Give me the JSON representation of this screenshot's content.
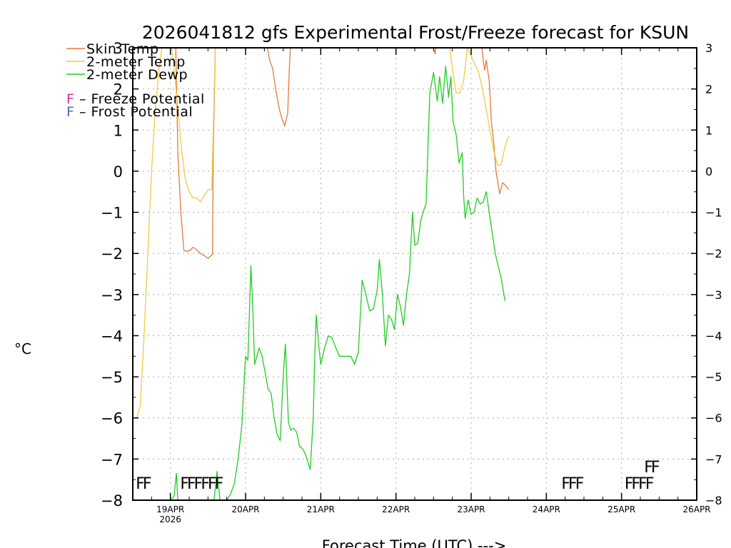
{
  "chart_data": {
    "type": "line",
    "title": "2026041812 gfs Experimental Frost/Freeze forecast for KSUN",
    "xlabel": "Forecast Time (UTC) --->",
    "ylabel": "°C",
    "ylim": [
      -8,
      3
    ],
    "xlim": [
      18.5,
      26.0
    ],
    "grid": true,
    "x_unit": "days of April 2026 (UTC)",
    "y_ticks": [
      "-8",
      "-7",
      "-6",
      "-5",
      "-4",
      "-3",
      "-2",
      "-1",
      "0",
      "1",
      "2",
      "3"
    ],
    "x_ticks": [
      {
        "label": "19APR",
        "x": 19,
        "sub": "2026"
      },
      {
        "label": "20APR",
        "x": 20
      },
      {
        "label": "21APR",
        "x": 21
      },
      {
        "label": "22APR",
        "x": 22
      },
      {
        "label": "23APR",
        "x": 23
      },
      {
        "label": "24APR",
        "x": 24
      },
      {
        "label": "25APR",
        "x": 25
      },
      {
        "label": "26APR",
        "x": 26
      }
    ],
    "legend": {
      "placement": "top-left",
      "series_entries": [
        "Skin Temp",
        "2-meter Temp",
        "2-meter Dewp"
      ],
      "symbol_entries": [
        {
          "symbol": "F",
          "text": " – Freeze Potential",
          "color": "#cc3399"
        },
        {
          "symbol": "F",
          "text": " – Frost Potential",
          "color": "#5566cc"
        }
      ]
    },
    "series": [
      {
        "name": "Skin Temp",
        "color": "#e07b39",
        "segments": [
          [
            [
              19.07,
              3.2
            ],
            [
              19.1,
              0.4
            ],
            [
              19.14,
              -1.0
            ],
            [
              19.18,
              -1.93
            ],
            [
              19.22,
              -1.95
            ],
            [
              19.26,
              -1.93
            ],
            [
              19.3,
              -1.85
            ],
            [
              19.34,
              -1.9
            ],
            [
              19.4,
              -2.0
            ],
            [
              19.45,
              -2.05
            ],
            [
              19.5,
              -2.12
            ],
            [
              19.56,
              -2.02
            ],
            [
              19.57,
              0.5
            ],
            [
              19.6,
              3.2
            ]
          ],
          [
            [
              20.27,
              3.2
            ],
            [
              20.32,
              2.7
            ],
            [
              20.36,
              2.5
            ],
            [
              20.4,
              2.0
            ],
            [
              20.45,
              1.5
            ],
            [
              20.48,
              1.3
            ],
            [
              20.52,
              1.1
            ],
            [
              20.56,
              1.4
            ],
            [
              20.58,
              2.4
            ],
            [
              20.6,
              3.2
            ]
          ],
          [
            [
              22.5,
              3.0
            ],
            [
              22.52,
              2.85
            ],
            [
              22.54,
              3.1
            ]
          ],
          [
            [
              23.13,
              3.2
            ],
            [
              23.16,
              2.7
            ],
            [
              23.18,
              2.45
            ],
            [
              23.2,
              2.7
            ],
            [
              23.24,
              2.2
            ],
            [
              23.27,
              1.2
            ],
            [
              23.3,
              0.7
            ],
            [
              23.33,
              0.0
            ],
            [
              23.38,
              -0.55
            ],
            [
              23.42,
              -0.28
            ],
            [
              23.46,
              -0.35
            ],
            [
              23.5,
              -0.45
            ]
          ]
        ]
      },
      {
        "name": "2-meter Temp",
        "color": "#eecc44",
        "segments": [
          [
            [
              18.55,
              -6.0
            ],
            [
              18.6,
              -5.7
            ],
            [
              18.65,
              -4.0
            ],
            [
              18.7,
              -2.0
            ],
            [
              18.75,
              0.0
            ],
            [
              18.8,
              1.5
            ],
            [
              18.85,
              2.5
            ],
            [
              18.9,
              3.2
            ]
          ],
          [
            [
              19.0,
              3.2
            ],
            [
              19.05,
              2.5
            ],
            [
              19.1,
              1.5
            ],
            [
              19.15,
              0.5
            ],
            [
              19.2,
              -0.2
            ],
            [
              19.25,
              -0.5
            ],
            [
              19.3,
              -0.65
            ],
            [
              19.35,
              -0.65
            ],
            [
              19.4,
              -0.75
            ],
            [
              19.45,
              -0.6
            ],
            [
              19.5,
              -0.45
            ],
            [
              19.55,
              -0.45
            ],
            [
              19.6,
              3.2
            ]
          ],
          [
            [
              22.7,
              3.2
            ],
            [
              22.75,
              2.5
            ],
            [
              22.8,
              1.9
            ],
            [
              22.85,
              1.9
            ],
            [
              22.9,
              2.2
            ],
            [
              22.95,
              3.0
            ],
            [
              23.0,
              2.8
            ],
            [
              23.05,
              2.6
            ],
            [
              23.1,
              2.4
            ],
            [
              23.15,
              2.0
            ],
            [
              23.2,
              1.5
            ],
            [
              23.25,
              1.0
            ],
            [
              23.3,
              0.5
            ],
            [
              23.35,
              0.15
            ],
            [
              23.4,
              0.15
            ],
            [
              23.45,
              0.6
            ],
            [
              23.5,
              0.85
            ]
          ]
        ]
      },
      {
        "name": "2-meter Dewp",
        "color": "#22cc22",
        "segments": [
          [
            [
              19.0,
              -8.0
            ],
            [
              19.05,
              -7.9
            ],
            [
              19.08,
              -7.35
            ],
            [
              19.1,
              -8.0
            ]
          ],
          [
            [
              19.58,
              -8.0
            ],
            [
              19.62,
              -7.3
            ],
            [
              19.66,
              -8.0
            ]
          ],
          [
            [
              19.75,
              -8.0
            ],
            [
              19.8,
              -7.85
            ],
            [
              19.85,
              -7.6
            ],
            [
              19.9,
              -7.0
            ],
            [
              19.95,
              -6.2
            ],
            [
              19.97,
              -5.5
            ],
            [
              20.0,
              -4.5
            ],
            [
              20.03,
              -4.6
            ],
            [
              20.05,
              -3.5
            ],
            [
              20.07,
              -2.3
            ],
            [
              20.1,
              -3.5
            ],
            [
              20.12,
              -4.7
            ],
            [
              20.15,
              -4.5
            ],
            [
              20.18,
              -4.3
            ],
            [
              20.22,
              -4.5
            ],
            [
              20.26,
              -4.9
            ],
            [
              20.3,
              -5.3
            ],
            [
              20.34,
              -5.4
            ],
            [
              20.38,
              -6.0
            ],
            [
              20.42,
              -6.4
            ],
            [
              20.46,
              -6.55
            ],
            [
              20.5,
              -5.0
            ],
            [
              20.53,
              -4.2
            ],
            [
              20.57,
              -6.1
            ],
            [
              20.6,
              -6.3
            ],
            [
              20.64,
              -6.25
            ],
            [
              20.68,
              -6.35
            ],
            [
              20.72,
              -6.7
            ],
            [
              20.76,
              -6.75
            ],
            [
              20.8,
              -6.9
            ],
            [
              20.84,
              -7.15
            ],
            [
              20.86,
              -7.25
            ],
            [
              20.9,
              -6.0
            ],
            [
              20.92,
              -4.5
            ],
            [
              20.94,
              -3.5
            ],
            [
              20.97,
              -4.2
            ],
            [
              21.0,
              -4.7
            ],
            [
              21.05,
              -4.3
            ],
            [
              21.1,
              -4.0
            ],
            [
              21.15,
              -4.05
            ],
            [
              21.2,
              -4.3
            ],
            [
              21.25,
              -4.5
            ],
            [
              21.3,
              -4.5
            ],
            [
              21.35,
              -4.5
            ],
            [
              21.4,
              -4.5
            ],
            [
              21.45,
              -4.7
            ],
            [
              21.5,
              -4.4
            ],
            [
              21.55,
              -2.65
            ],
            [
              21.6,
              -3.0
            ],
            [
              21.65,
              -3.4
            ],
            [
              21.7,
              -3.35
            ],
            [
              21.75,
              -2.9
            ],
            [
              21.78,
              -2.15
            ],
            [
              21.82,
              -3.0
            ],
            [
              21.86,
              -4.25
            ],
            [
              21.9,
              -3.5
            ],
            [
              21.94,
              -3.6
            ],
            [
              21.98,
              -3.85
            ],
            [
              22.02,
              -3.0
            ],
            [
              22.06,
              -3.3
            ],
            [
              22.1,
              -3.75
            ],
            [
              22.14,
              -3.0
            ],
            [
              22.18,
              -2.5
            ],
            [
              22.22,
              -1.0
            ],
            [
              22.25,
              -1.8
            ],
            [
              22.29,
              -1.75
            ],
            [
              22.33,
              -1.2
            ],
            [
              22.36,
              -1.0
            ],
            [
              22.4,
              -0.8
            ],
            [
              22.45,
              1.9
            ],
            [
              22.5,
              2.4
            ],
            [
              22.55,
              1.7
            ],
            [
              22.58,
              2.3
            ],
            [
              22.62,
              1.65
            ],
            [
              22.66,
              2.55
            ],
            [
              22.7,
              1.8
            ],
            [
              22.73,
              2.3
            ],
            [
              22.76,
              1.2
            ],
            [
              22.8,
              0.9
            ],
            [
              22.84,
              0.2
            ],
            [
              22.88,
              0.45
            ],
            [
              22.9,
              -0.6
            ],
            [
              22.92,
              -1.15
            ],
            [
              22.96,
              -0.7
            ],
            [
              23.0,
              -1.05
            ],
            [
              23.04,
              -1.0
            ],
            [
              23.08,
              -0.65
            ],
            [
              23.12,
              -0.8
            ],
            [
              23.16,
              -0.75
            ],
            [
              23.2,
              -0.5
            ],
            [
              23.24,
              -1.0
            ],
            [
              23.28,
              -1.5
            ],
            [
              23.32,
              -2.0
            ],
            [
              23.36,
              -2.3
            ],
            [
              23.4,
              -2.6
            ],
            [
              23.45,
              -3.15
            ]
          ]
        ]
      }
    ],
    "markers": [
      {
        "text": "FF",
        "x": 18.54,
        "y": -7.55,
        "color": "#cc3399"
      },
      {
        "text": "FFFFFF",
        "x": 19.13,
        "y": -7.55,
        "color": "#cc3399"
      },
      {
        "text": "FFF",
        "x": 24.2,
        "y": -7.55,
        "color": "#cc3399"
      },
      {
        "text": "FFFF",
        "x": 25.04,
        "y": -7.55,
        "color": "#cc3399"
      },
      {
        "text": "FF",
        "x": 25.3,
        "y": -7.15,
        "color": "#5566cc"
      }
    ]
  }
}
